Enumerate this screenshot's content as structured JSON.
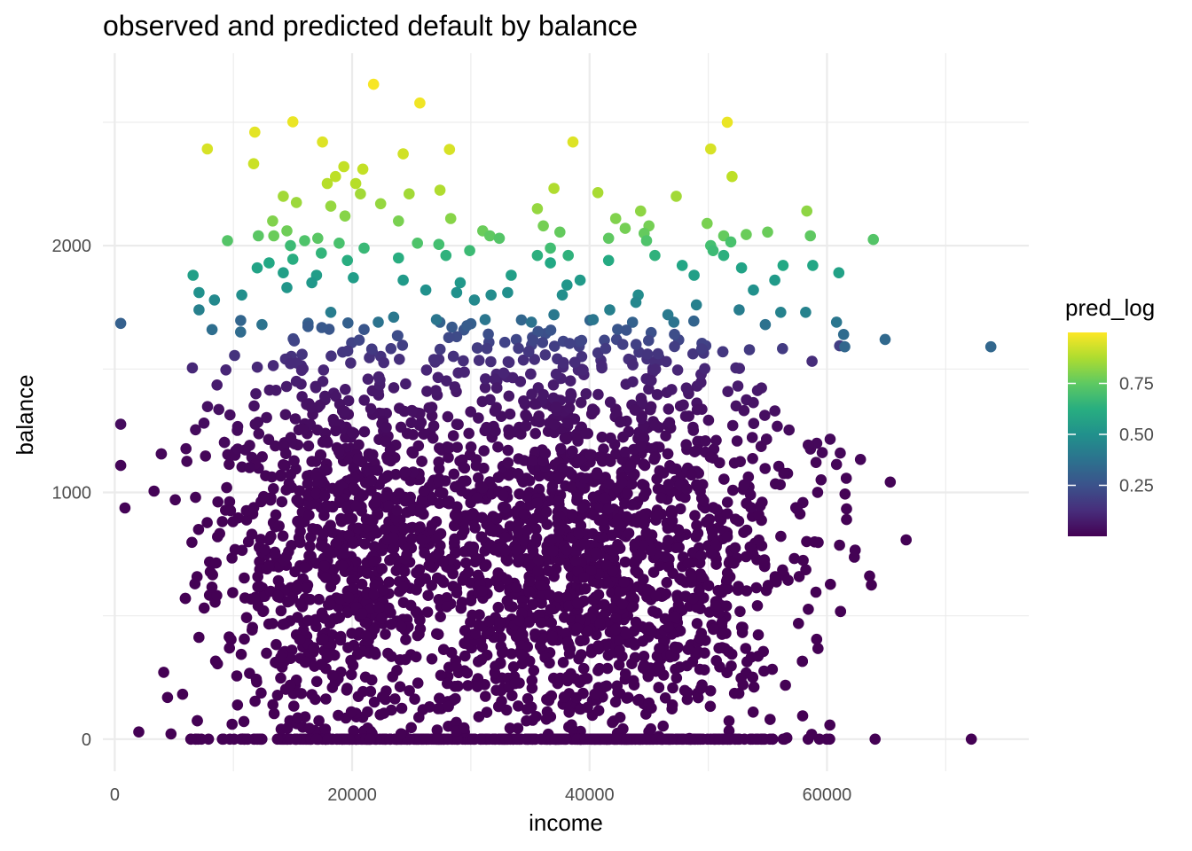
{
  "chart_data": {
    "type": "scatter",
    "title": "observed and predicted default by balance",
    "xlabel": "income",
    "ylabel": "balance",
    "xlim": [
      -1000,
      77000
    ],
    "ylim": [
      -130,
      2780
    ],
    "x_ticks": [
      0,
      20000,
      40000,
      60000
    ],
    "y_ticks": [
      0,
      1000,
      2000
    ],
    "grid": true,
    "color_variable": "pred_log",
    "colorscale": "viridis",
    "colorscale_range": [
      0.0,
      1.0
    ],
    "legend": {
      "title": "pred_log",
      "position": "right",
      "ticks": [
        {
          "value": 0.25,
          "label": "0.25"
        },
        {
          "value": 0.5,
          "label": "0.50"
        },
        {
          "value": 0.75,
          "label": "0.75"
        }
      ]
    },
    "points": [
      [
        21800,
        2654,
        0.99
      ],
      [
        25700,
        2578,
        0.98
      ],
      [
        15000,
        2502,
        0.97
      ],
      [
        51600,
        2500,
        0.97
      ],
      [
        11800,
        2460,
        0.96
      ],
      [
        17500,
        2420,
        0.95
      ],
      [
        38600,
        2420,
        0.95
      ],
      [
        7800,
        2392,
        0.94
      ],
      [
        28200,
        2390,
        0.94
      ],
      [
        50200,
        2392,
        0.94
      ],
      [
        24300,
        2372,
        0.93
      ],
      [
        11700,
        2332,
        0.92
      ],
      [
        19300,
        2320,
        0.91
      ],
      [
        20900,
        2310,
        0.91
      ],
      [
        52000,
        2280,
        0.9
      ],
      [
        18600,
        2280,
        0.9
      ],
      [
        20300,
        2252,
        0.89
      ],
      [
        17900,
        2252,
        0.89
      ],
      [
        37000,
        2232,
        0.88
      ],
      [
        27400,
        2225,
        0.88
      ],
      [
        40700,
        2215,
        0.87
      ],
      [
        47300,
        2200,
        0.86
      ],
      [
        14200,
        2200,
        0.86
      ],
      [
        24800,
        2210,
        0.86
      ],
      [
        20700,
        2210,
        0.86
      ],
      [
        15300,
        2175,
        0.85
      ],
      [
        22400,
        2170,
        0.84
      ],
      [
        18200,
        2160,
        0.84
      ],
      [
        35600,
        2150,
        0.84
      ],
      [
        44300,
        2140,
        0.83
      ],
      [
        58300,
        2140,
        0.83
      ],
      [
        19400,
        2120,
        0.82
      ],
      [
        28300,
        2110,
        0.82
      ],
      [
        42200,
        2110,
        0.81
      ],
      [
        13300,
        2100,
        0.81
      ],
      [
        23900,
        2100,
        0.8
      ],
      [
        49900,
        2090,
        0.8
      ],
      [
        36100,
        2080,
        0.79
      ],
      [
        45000,
        2080,
        0.79
      ],
      [
        43000,
        2070,
        0.79
      ],
      [
        14500,
        2060,
        0.78
      ],
      [
        55000,
        2055,
        0.77
      ],
      [
        31000,
        2060,
        0.77
      ],
      [
        13400,
        2040,
        0.77
      ],
      [
        53200,
        2045,
        0.77
      ],
      [
        44600,
        2050,
        0.76
      ],
      [
        37500,
        2055,
        0.76
      ],
      [
        51300,
        2040,
        0.76
      ],
      [
        41600,
        2030,
        0.75
      ],
      [
        31600,
        2040,
        0.75
      ],
      [
        58600,
        2040,
        0.75
      ],
      [
        17100,
        2030,
        0.74
      ],
      [
        12100,
        2040,
        0.74
      ],
      [
        9500,
        2020,
        0.73
      ],
      [
        32400,
        2030,
        0.73
      ],
      [
        63900,
        2025,
        0.73
      ],
      [
        25500,
        2010,
        0.72
      ],
      [
        44800,
        2020,
        0.72
      ],
      [
        16000,
        2020,
        0.72
      ],
      [
        51900,
        2015,
        0.71
      ],
      [
        18900,
        2010,
        0.71
      ],
      [
        27300,
        2005,
        0.7
      ],
      [
        50200,
        2000,
        0.7
      ],
      [
        36700,
        1990,
        0.69
      ],
      [
        50400,
        1980,
        0.68
      ],
      [
        29900,
        1980,
        0.68
      ],
      [
        14800,
        2000,
        0.68
      ],
      [
        21000,
        1990,
        0.67
      ],
      [
        17400,
        1970,
        0.65
      ],
      [
        38200,
        1960,
        0.64
      ],
      [
        45500,
        1960,
        0.64
      ],
      [
        27900,
        1960,
        0.64
      ],
      [
        51300,
        1960,
        0.63
      ],
      [
        35600,
        1960,
        0.63
      ],
      [
        23900,
        1950,
        0.62
      ],
      [
        15000,
        1945,
        0.62
      ],
      [
        19600,
        1940,
        0.62
      ],
      [
        41600,
        1940,
        0.61
      ],
      [
        13000,
        1930,
        0.6
      ],
      [
        36700,
        1930,
        0.6
      ],
      [
        56300,
        1920,
        0.6
      ],
      [
        58800,
        1920,
        0.59
      ],
      [
        47800,
        1920,
        0.59
      ],
      [
        52800,
        1910,
        0.58
      ],
      [
        12000,
        1910,
        0.58
      ],
      [
        61000,
        1890,
        0.57
      ],
      [
        6600,
        1880,
        0.56
      ],
      [
        48800,
        1880,
        0.56
      ],
      [
        33400,
        1880,
        0.56
      ],
      [
        14200,
        1890,
        0.56
      ],
      [
        17000,
        1880,
        0.55
      ],
      [
        20100,
        1870,
        0.55
      ],
      [
        55600,
        1860,
        0.54
      ],
      [
        39200,
        1860,
        0.54
      ],
      [
        24300,
        1860,
        0.54
      ],
      [
        16600,
        1850,
        0.53
      ],
      [
        29100,
        1850,
        0.53
      ],
      [
        38100,
        1840,
        0.52
      ],
      [
        14500,
        1830,
        0.52
      ],
      [
        7100,
        1810,
        0.5
      ],
      [
        28800,
        1810,
        0.5
      ],
      [
        53800,
        1820,
        0.5
      ],
      [
        26200,
        1820,
        0.5
      ],
      [
        10700,
        1800,
        0.49
      ],
      [
        37700,
        1800,
        0.49
      ],
      [
        33100,
        1810,
        0.49
      ],
      [
        44100,
        1800,
        0.48
      ],
      [
        31700,
        1800,
        0.48
      ],
      [
        8400,
        1780,
        0.47
      ],
      [
        30300,
        1780,
        0.47
      ],
      [
        43900,
        1770,
        0.46
      ],
      [
        58200,
        1730,
        0.44
      ],
      [
        56100,
        1730,
        0.44
      ],
      [
        7100,
        1740,
        0.43
      ],
      [
        41700,
        1740,
        0.43
      ],
      [
        49000,
        1760,
        0.43
      ],
      [
        18200,
        1730,
        0.42
      ],
      [
        52600,
        1740,
        0.42
      ],
      [
        60800,
        1690,
        0.39
      ],
      [
        46600,
        1720,
        0.41
      ],
      [
        23500,
        1710,
        0.4
      ],
      [
        37000,
        1720,
        0.4
      ],
      [
        8200,
        1660,
        0.36
      ],
      [
        61400,
        1640,
        0.35
      ],
      [
        10600,
        1650,
        0.35
      ],
      [
        64900,
        1620,
        0.34
      ],
      [
        73800,
        1590,
        0.33
      ],
      [
        61500,
        1590,
        0.33
      ],
      [
        12400,
        1680,
        0.38
      ],
      [
        54800,
        1680,
        0.37
      ],
      [
        22200,
        1690,
        0.38
      ],
      [
        31200,
        1700,
        0.39
      ],
      [
        27100,
        1700,
        0.39
      ],
      [
        47100,
        1690,
        0.38
      ],
      [
        40300,
        1700,
        0.39
      ],
      [
        35100,
        1690,
        0.38
      ]
    ]
  }
}
